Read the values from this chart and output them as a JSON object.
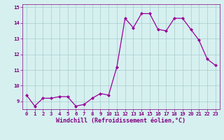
{
  "x": [
    0,
    1,
    2,
    3,
    4,
    5,
    6,
    7,
    8,
    9,
    10,
    11,
    12,
    13,
    14,
    15,
    16,
    17,
    18,
    19,
    20,
    21,
    22,
    23
  ],
  "y": [
    9.4,
    8.7,
    9.2,
    9.2,
    9.3,
    9.3,
    8.7,
    8.8,
    9.2,
    9.5,
    9.4,
    11.2,
    14.3,
    13.7,
    14.6,
    14.6,
    13.6,
    13.5,
    14.3,
    14.3,
    13.6,
    12.9,
    11.7,
    11.3
  ],
  "line_color": "#990099",
  "marker": "D",
  "marker_size": 2,
  "bg_color": "#d6f0f0",
  "grid_color": "#aacccc",
  "xlabel": "Windchill (Refroidissement éolien,°C)",
  "xlabel_color": "#800080",
  "tick_color": "#800080",
  "spine_color": "#800080",
  "ylim": [
    8.5,
    15.2
  ],
  "xlim": [
    -0.5,
    23.5
  ],
  "yticks": [
    9,
    10,
    11,
    12,
    13,
    14,
    15
  ],
  "xticks": [
    0,
    1,
    2,
    3,
    4,
    5,
    6,
    7,
    8,
    9,
    10,
    11,
    12,
    13,
    14,
    15,
    16,
    17,
    18,
    19,
    20,
    21,
    22,
    23
  ],
  "tick_fontsize": 5.2,
  "xlabel_fontsize": 6.0,
  "linewidth": 0.9
}
